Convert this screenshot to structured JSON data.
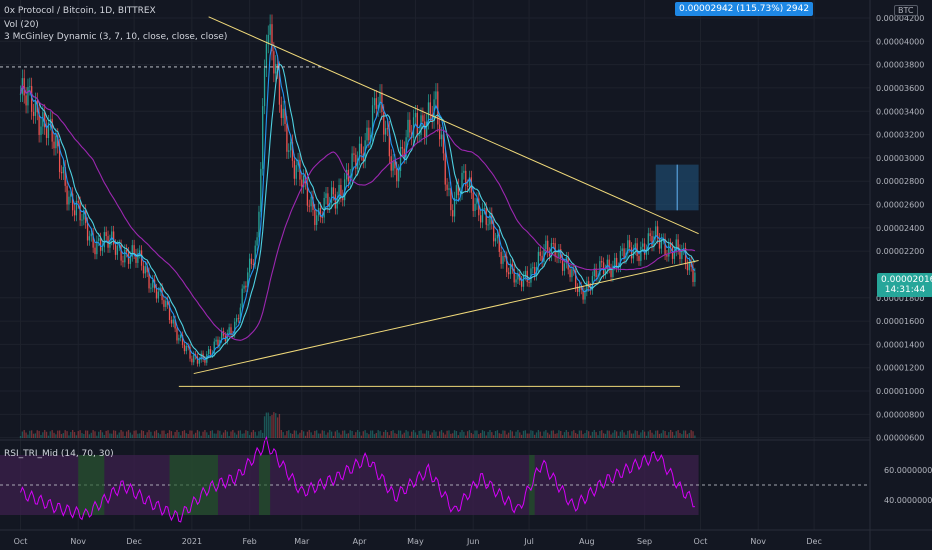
{
  "legend": {
    "symbol": "0x Protocol / Bitcoin, 1D, BITTREX",
    "volume": "Vol (20)",
    "mcginley": "3 McGinley Dynamic (3, 7, 10, close, close, close)",
    "rsi": "RSI_TRI_Mid (14, 70, 30)"
  },
  "last_price": {
    "value": "0.00002016",
    "countdown": "14:31:44"
  },
  "target_label": "0.00002942 (115.73%) 2942",
  "btc_badge": "BTC",
  "colors": {
    "up": "#26a69a",
    "down": "#ef5350",
    "ma_cyan": "#4dd0e1",
    "ma_blue": "#2196f3",
    "ma_purple": "#9c27b0",
    "trendline": "#f0d97a",
    "rsi_line": "#d500f9",
    "rsi_band": "#3a1f4a",
    "target_box": "#1e4a6e"
  },
  "chart_data": [
    {
      "type": "candlestick",
      "title": "0x Protocol / Bitcoin, 1D, BITTREX",
      "x": [
        "Oct",
        "Nov",
        "Dec",
        "2021",
        "Feb",
        "Mar",
        "Apr",
        "May",
        "Jun",
        "Jul",
        "Aug",
        "Sep",
        "Oct",
        "Nov",
        "Dec"
      ],
      "y_ticks": [
        "0.00004200",
        "0.00004000",
        "0.00003800",
        "0.00003600",
        "0.00003400",
        "0.00003200",
        "0.00003000",
        "0.00002800",
        "0.00002600",
        "0.00002400",
        "0.00002200",
        "0.00001800",
        "0.00001600",
        "0.00001400",
        "0.00001200",
        "0.00001000",
        "0.00000800",
        "0.00000600"
      ],
      "ylim": [
        5.8e-06,
        4.32e-05
      ],
      "close_path": [
        {
          "date": "2020-10-01",
          "value": 3.55e-05
        },
        {
          "date": "2020-10-15",
          "value": 3.3e-05
        },
        {
          "date": "2020-10-28",
          "value": 2.65e-05
        },
        {
          "date": "2020-11-08",
          "value": 2.3e-05
        },
        {
          "date": "2020-11-20",
          "value": 2.25e-05
        },
        {
          "date": "2020-12-05",
          "value": 2.1e-05
        },
        {
          "date": "2020-12-20",
          "value": 1.65e-05
        },
        {
          "date": "2021-01-01",
          "value": 1.25e-05
        },
        {
          "date": "2021-01-12",
          "value": 1.35e-05
        },
        {
          "date": "2021-01-25",
          "value": 1.6e-05
        },
        {
          "date": "2021-02-05",
          "value": 2.3e-05
        },
        {
          "date": "2021-02-10",
          "value": 4.1e-05
        },
        {
          "date": "2021-02-15",
          "value": 3.7e-05
        },
        {
          "date": "2021-02-25",
          "value": 2.9e-05
        },
        {
          "date": "2021-03-10",
          "value": 2.5e-05
        },
        {
          "date": "2021-03-20",
          "value": 2.7e-05
        },
        {
          "date": "2021-04-01",
          "value": 3e-05
        },
        {
          "date": "2021-04-10",
          "value": 3.5e-05
        },
        {
          "date": "2021-04-20",
          "value": 2.9e-05
        },
        {
          "date": "2021-05-01",
          "value": 3.3e-05
        },
        {
          "date": "2021-05-12",
          "value": 3.4e-05
        },
        {
          "date": "2021-05-20",
          "value": 2.6e-05
        },
        {
          "date": "2021-05-28",
          "value": 2.8e-05
        },
        {
          "date": "2021-06-10",
          "value": 2.4e-05
        },
        {
          "date": "2021-06-25",
          "value": 1.9e-05
        },
        {
          "date": "2021-07-05",
          "value": 2.1e-05
        },
        {
          "date": "2021-07-15",
          "value": 2.25e-05
        },
        {
          "date": "2021-07-28",
          "value": 1.85e-05
        },
        {
          "date": "2021-08-10",
          "value": 2.05e-05
        },
        {
          "date": "2021-08-25",
          "value": 2.2e-05
        },
        {
          "date": "2021-09-08",
          "value": 2.3e-05
        },
        {
          "date": "2021-09-18",
          "value": 2.2e-05
        },
        {
          "date": "2021-09-28",
          "value": 2.02e-05
        }
      ],
      "last_close": 2.016e-05,
      "horizontal_levels": [
        3.78e-05,
        1.04e-05
      ],
      "target": {
        "value": 2.942e-05,
        "change_pct": 115.73
      }
    },
    {
      "type": "line",
      "title": "RSI_TRI_Mid (14, 70, 30)",
      "y_ticks": [
        "60.00000000",
        "40.00000000"
      ],
      "ylim": [
        20,
        80
      ],
      "levels": [
        70,
        50,
        30
      ],
      "values": [
        {
          "date": "2020-10-01",
          "value": 45
        },
        {
          "date": "2020-10-20",
          "value": 35
        },
        {
          "date": "2020-11-05",
          "value": 30
        },
        {
          "date": "2020-11-25",
          "value": 50
        },
        {
          "date": "2020-12-10",
          "value": 38
        },
        {
          "date": "2020-12-25",
          "value": 28
        },
        {
          "date": "2021-01-10",
          "value": 48
        },
        {
          "date": "2021-01-25",
          "value": 55
        },
        {
          "date": "2021-02-10",
          "value": 78
        },
        {
          "date": "2021-03-01",
          "value": 45
        },
        {
          "date": "2021-03-20",
          "value": 55
        },
        {
          "date": "2021-04-05",
          "value": 68
        },
        {
          "date": "2021-04-20",
          "value": 42
        },
        {
          "date": "2021-05-08",
          "value": 60
        },
        {
          "date": "2021-05-22",
          "value": 32
        },
        {
          "date": "2021-06-05",
          "value": 55
        },
        {
          "date": "2021-06-25",
          "value": 33
        },
        {
          "date": "2021-07-08",
          "value": 65
        },
        {
          "date": "2021-07-25",
          "value": 35
        },
        {
          "date": "2021-08-10",
          "value": 52
        },
        {
          "date": "2021-08-25",
          "value": 62
        },
        {
          "date": "2021-09-08",
          "value": 70
        },
        {
          "date": "2021-09-20",
          "value": 48
        },
        {
          "date": "2021-09-28",
          "value": 38
        }
      ]
    }
  ]
}
